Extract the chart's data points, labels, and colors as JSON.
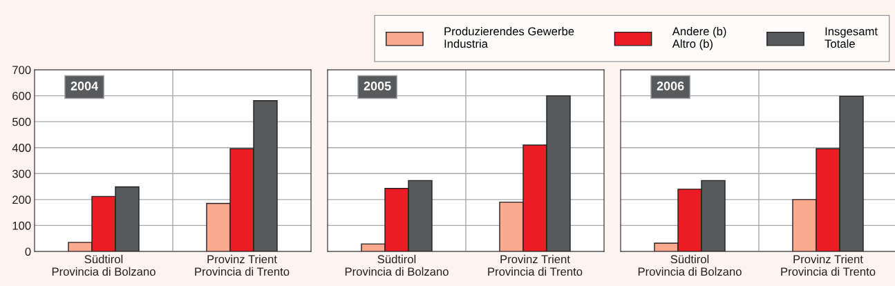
{
  "chart_data": [
    {
      "type": "bar",
      "categories": [
        "Südtirol\nProvincia di Bolzano",
        "Provinz Trient\nProvincia di Trento"
      ],
      "annotations": [
        "2004"
      ],
      "ylim": [
        0,
        700
      ],
      "yticks": [
        0,
        100,
        200,
        300,
        400,
        500,
        600,
        700
      ],
      "grid": "y",
      "legend": "top right",
      "series": [
        {
          "name": "Produzierendes Gewerbe\nIndustria",
          "color": "#f9a98d",
          "values": [
            35,
            185
          ]
        },
        {
          "name": "Andere (b)\nAltro (b)",
          "color": "#ec1c24",
          "values": [
            212,
            396
          ]
        },
        {
          "name": "Insgesamt\nTotale",
          "color": "#58595b",
          "values": [
            249,
            581
          ]
        }
      ]
    },
    {
      "type": "bar",
      "categories": [
        "Südtirol\nProvincia di Bolzano",
        "Provinz Trient\nProvincia di Trento"
      ],
      "annotations": [
        "2005"
      ],
      "ylim": [
        0,
        700
      ],
      "yticks": [
        0,
        100,
        200,
        300,
        400,
        500,
        600,
        700
      ],
      "grid": "y",
      "tick_labels": "x",
      "series": [
        {
          "color": "#f9a98d",
          "values": [
            29,
            190
          ]
        },
        {
          "color": "#ec1c24",
          "values": [
            243,
            410
          ]
        },
        {
          "color": "#58595b",
          "values": [
            273,
            600
          ]
        }
      ]
    },
    {
      "type": "bar",
      "categories": [
        "Südtirol\nProvincia di Bolzano",
        "Provinz Trient\nProvincia di Trento"
      ],
      "annotations": [
        "2006"
      ],
      "ylim": [
        0,
        700
      ],
      "yticks": [
        0,
        100,
        200,
        300,
        400,
        500,
        600,
        700
      ],
      "grid": "y",
      "tick_labels": "x",
      "series": [
        {
          "color": "#f9a98d",
          "values": [
            32,
            200
          ]
        },
        {
          "color": "#ec1c24",
          "values": [
            240,
            396
          ]
        },
        {
          "color": "#58595b",
          "values": [
            273,
            598
          ]
        }
      ]
    }
  ]
}
